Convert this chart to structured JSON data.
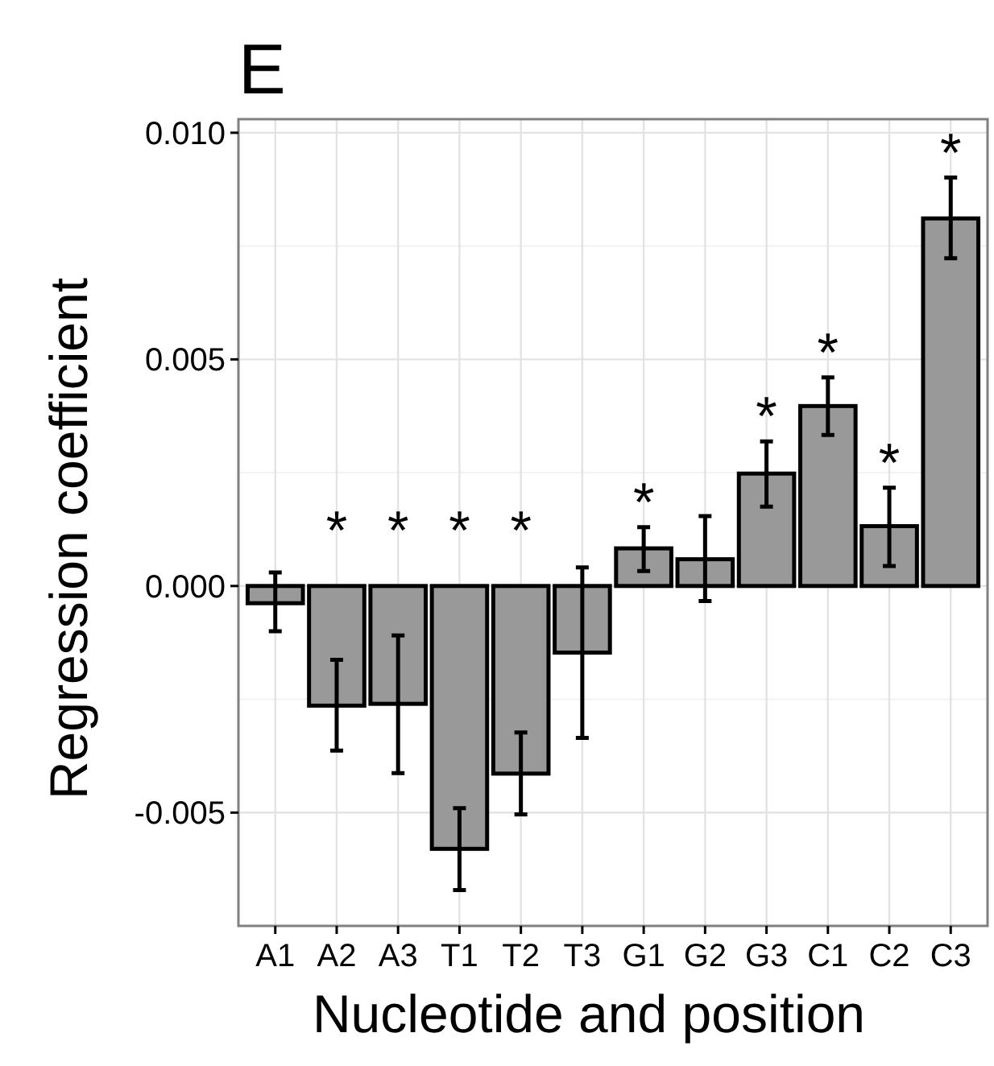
{
  "chart_data": {
    "type": "bar",
    "title": "E",
    "xlabel": "Nucleotide and position",
    "ylabel": "Regression coefficient",
    "categories": [
      "A1",
      "A2",
      "A3",
      "T1",
      "T2",
      "T3",
      "G1",
      "G2",
      "G3",
      "C1",
      "C2",
      "C3"
    ],
    "values": [
      -0.00038,
      -0.00264,
      -0.0026,
      -0.0058,
      -0.00414,
      -0.00147,
      0.00083,
      0.00059,
      0.00248,
      0.00397,
      0.00132,
      0.00811
    ],
    "errors": [
      [
        -0.001,
        0.0003
      ],
      [
        -0.00363,
        -0.00163
      ],
      [
        -0.00413,
        -0.00109
      ],
      [
        -0.00671,
        -0.0049
      ],
      [
        -0.00504,
        -0.00323
      ],
      [
        -0.00335,
        0.00041
      ],
      [
        0.00033,
        0.0013
      ],
      [
        -0.00033,
        0.00154
      ],
      [
        0.00175,
        0.00319
      ],
      [
        0.00333,
        0.0046
      ],
      [
        0.00044,
        0.00217
      ],
      [
        0.00723,
        0.00901
      ]
    ],
    "color": "#999999",
    "ylim": [
      -0.0075,
      0.0103
    ],
    "yticks": [
      {
        "value": -0.005,
        "label": "-0.005"
      },
      {
        "value": 0,
        "label": "0.000"
      },
      {
        "value": 0.005,
        "label": "0.005"
      },
      {
        "value": 0.01,
        "label": "0.010"
      }
    ],
    "grid": true,
    "value_labels": [
      null,
      "*",
      "*",
      "*",
      "*",
      null,
      "*",
      null,
      "*",
      "*",
      "*",
      "*"
    ]
  }
}
